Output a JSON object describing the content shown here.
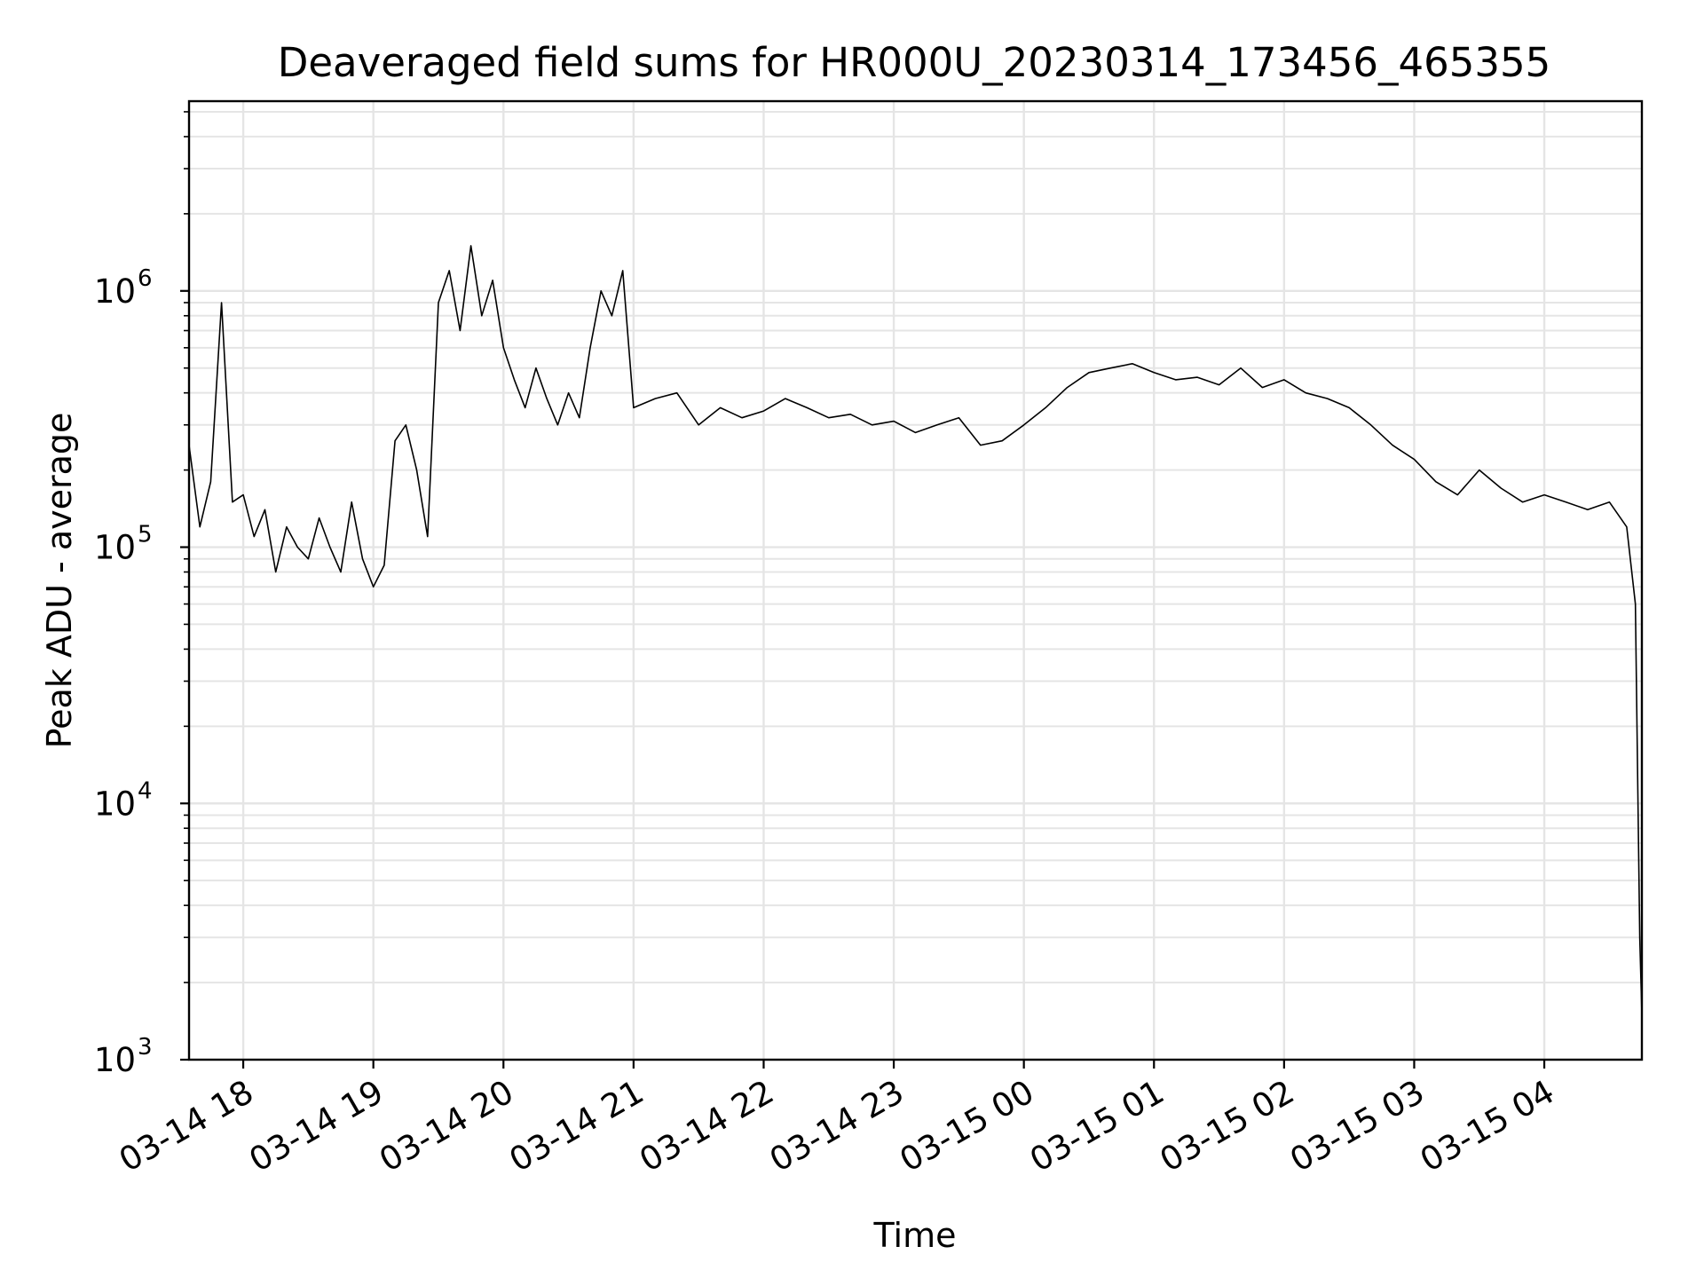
{
  "chart_data": {
    "type": "line",
    "title": "Deaveraged field sums for HR000U_20230314_173456_465355",
    "xlabel": "Time",
    "ylabel": "Peak ADU - average",
    "yscale": "log",
    "ylim": [
      1000,
      5500000
    ],
    "xlim": [
      "2023-03-14 17:35",
      "2023-03-15 04:45"
    ],
    "grid": true,
    "line_color": "#000000",
    "grid_color": "#e5e5e5",
    "x_tick_values": [
      "2023-03-14 18:00",
      "2023-03-14 19:00",
      "2023-03-14 20:00",
      "2023-03-14 21:00",
      "2023-03-14 22:00",
      "2023-03-14 23:00",
      "2023-03-15 00:00",
      "2023-03-15 01:00",
      "2023-03-15 02:00",
      "2023-03-15 03:00",
      "2023-03-15 04:00"
    ],
    "x_tick_labels": [
      "03-14 18",
      "03-14 19",
      "03-14 20",
      "03-14 21",
      "03-14 22",
      "03-14 23",
      "03-15 00",
      "03-15 01",
      "03-15 02",
      "03-15 03",
      "03-15 04"
    ],
    "y_tick_values": [
      1000,
      10000,
      100000,
      1000000
    ],
    "y_tick_labels": [
      {
        "base": "10",
        "exp": "3"
      },
      {
        "base": "10",
        "exp": "4"
      },
      {
        "base": "10",
        "exp": "5"
      },
      {
        "base": "10",
        "exp": "6"
      }
    ],
    "series": [
      {
        "x": [
          "2023-03-14 17:35",
          "2023-03-14 17:40",
          "2023-03-14 17:45",
          "2023-03-14 17:50",
          "2023-03-14 17:55",
          "2023-03-14 18:00",
          "2023-03-14 18:05",
          "2023-03-14 18:10",
          "2023-03-14 18:15",
          "2023-03-14 18:20",
          "2023-03-14 18:25",
          "2023-03-14 18:30",
          "2023-03-14 18:35",
          "2023-03-14 18:40",
          "2023-03-14 18:45",
          "2023-03-14 18:50",
          "2023-03-14 18:55",
          "2023-03-14 19:00",
          "2023-03-14 19:05",
          "2023-03-14 19:10",
          "2023-03-14 19:15",
          "2023-03-14 19:20",
          "2023-03-14 19:25",
          "2023-03-14 19:30",
          "2023-03-14 19:35",
          "2023-03-14 19:40",
          "2023-03-14 19:45",
          "2023-03-14 19:50",
          "2023-03-14 19:55",
          "2023-03-14 20:00",
          "2023-03-14 20:05",
          "2023-03-14 20:10",
          "2023-03-14 20:15",
          "2023-03-14 20:20",
          "2023-03-14 20:25",
          "2023-03-14 20:30",
          "2023-03-14 20:35",
          "2023-03-14 20:40",
          "2023-03-14 20:45",
          "2023-03-14 20:50",
          "2023-03-14 20:55",
          "2023-03-14 21:00",
          "2023-03-14 21:10",
          "2023-03-14 21:20",
          "2023-03-14 21:30",
          "2023-03-14 21:40",
          "2023-03-14 21:50",
          "2023-03-14 22:00",
          "2023-03-14 22:10",
          "2023-03-14 22:20",
          "2023-03-14 22:30",
          "2023-03-14 22:40",
          "2023-03-14 22:50",
          "2023-03-14 23:00",
          "2023-03-14 23:10",
          "2023-03-14 23:20",
          "2023-03-14 23:30",
          "2023-03-14 23:40",
          "2023-03-14 23:50",
          "2023-03-15 00:00",
          "2023-03-15 00:10",
          "2023-03-15 00:20",
          "2023-03-15 00:30",
          "2023-03-15 00:40",
          "2023-03-15 00:50",
          "2023-03-15 01:00",
          "2023-03-15 01:10",
          "2023-03-15 01:20",
          "2023-03-15 01:30",
          "2023-03-15 01:40",
          "2023-03-15 01:50",
          "2023-03-15 02:00",
          "2023-03-15 02:10",
          "2023-03-15 02:20",
          "2023-03-15 02:30",
          "2023-03-15 02:40",
          "2023-03-15 02:50",
          "2023-03-15 03:00",
          "2023-03-15 03:10",
          "2023-03-15 03:20",
          "2023-03-15 03:30",
          "2023-03-15 03:40",
          "2023-03-15 03:50",
          "2023-03-15 04:00",
          "2023-03-15 04:10",
          "2023-03-15 04:20",
          "2023-03-15 04:30",
          "2023-03-15 04:38",
          "2023-03-15 04:42",
          "2023-03-15 04:44",
          "2023-03-15 04:45"
        ],
        "y": [
          250000,
          120000,
          180000,
          900000,
          150000,
          160000,
          110000,
          140000,
          80000,
          120000,
          100000,
          90000,
          130000,
          100000,
          80000,
          150000,
          90000,
          70000,
          85000,
          260000,
          300000,
          200000,
          110000,
          900000,
          1200000,
          700000,
          1500000,
          800000,
          1100000,
          600000,
          450000,
          350000,
          500000,
          380000,
          300000,
          400000,
          320000,
          600000,
          1000000,
          800000,
          1200000,
          350000,
          380000,
          400000,
          300000,
          350000,
          320000,
          340000,
          380000,
          350000,
          320000,
          330000,
          300000,
          310000,
          280000,
          300000,
          320000,
          250000,
          260000,
          300000,
          350000,
          420000,
          480000,
          500000,
          520000,
          480000,
          450000,
          460000,
          430000,
          500000,
          420000,
          450000,
          400000,
          380000,
          350000,
          300000,
          250000,
          220000,
          180000,
          160000,
          200000,
          170000,
          150000,
          160000,
          150000,
          140000,
          150000,
          120000,
          60000,
          3000,
          1500
        ]
      }
    ]
  }
}
